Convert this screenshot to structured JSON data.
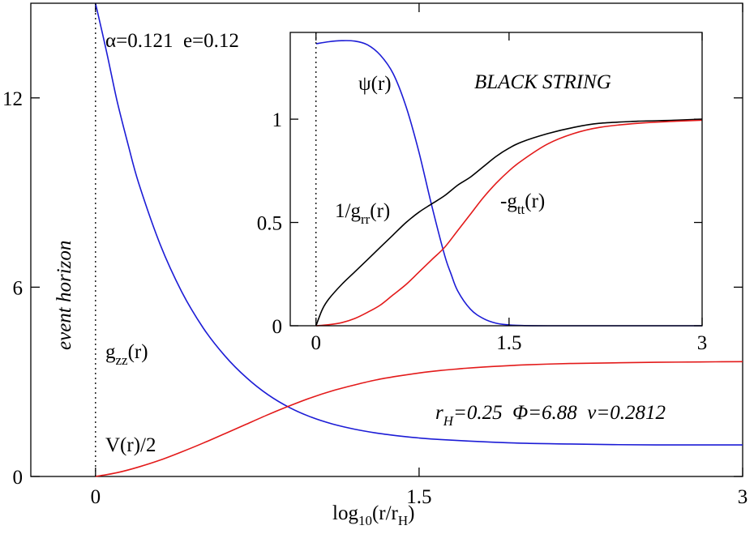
{
  "chart_data": [
    {
      "type": "line",
      "panel": "main",
      "xlabel": {
        "base": "log",
        "sub1": "10",
        "mid": "(r/r",
        "sub2": "H",
        "end": ")"
      },
      "xlim": [
        -0.3,
        3
      ],
      "ylim": [
        0,
        15
      ],
      "x_ticks": [
        0,
        1.5,
        3
      ],
      "x_tick_labels": [
        "0",
        "1.5",
        "3"
      ],
      "y_ticks": [
        0,
        6,
        12
      ],
      "y_tick_labels": [
        "0",
        "6",
        "12"
      ],
      "vertical_line": {
        "x": 0,
        "style": "dotted",
        "label": "event horizon"
      },
      "annotations": {
        "params_top": "α=0.121  e=0.12",
        "params_bottom": {
          "r_main": "r",
          "r_sub": "H",
          "rest": "=0.25  Φ=6.88  ν=0.2812"
        }
      },
      "series": [
        {
          "name": "g_zz(r)",
          "label": {
            "main": "g",
            "sub": "zz",
            "end": "(r)"
          },
          "color": "#1c1cd6",
          "x": [
            0,
            0.05,
            0.1,
            0.15,
            0.2,
            0.3,
            0.4,
            0.5,
            0.6,
            0.7,
            0.8,
            0.9,
            1.0,
            1.1,
            1.2,
            1.3,
            1.4,
            1.5,
            1.6,
            1.8,
            2.0,
            2.2,
            2.4,
            2.6,
            2.8,
            3.0
          ],
          "y": [
            15.0,
            13.5,
            11.9,
            10.55,
            9.3,
            7.35,
            5.85,
            4.7,
            3.82,
            3.13,
            2.59,
            2.18,
            1.88,
            1.66,
            1.5,
            1.38,
            1.29,
            1.22,
            1.17,
            1.1,
            1.05,
            1.03,
            1.01,
            1.0,
            1.0,
            1.0
          ]
        },
        {
          "name": "V(r)/2",
          "label": {
            "main": "V(r)/2"
          },
          "color": "#e31a1a",
          "x": [
            0,
            0.1,
            0.2,
            0.3,
            0.4,
            0.5,
            0.6,
            0.7,
            0.8,
            0.9,
            1.0,
            1.1,
            1.2,
            1.3,
            1.4,
            1.5,
            1.6,
            1.7,
            1.8,
            2.0,
            2.2,
            2.4,
            2.6,
            2.8,
            3.0
          ],
          "y": [
            0.0,
            0.12,
            0.3,
            0.52,
            0.78,
            1.06,
            1.36,
            1.66,
            1.96,
            2.24,
            2.5,
            2.72,
            2.9,
            3.06,
            3.18,
            3.28,
            3.36,
            3.42,
            3.47,
            3.54,
            3.58,
            3.6,
            3.62,
            3.63,
            3.64
          ]
        }
      ]
    },
    {
      "type": "line",
      "panel": "inset",
      "title": "BLACK STRING",
      "xlim": [
        -0.2,
        3
      ],
      "ylim": [
        0,
        1.42
      ],
      "x_ticks": [
        0,
        1.5,
        3
      ],
      "x_tick_labels": [
        "0",
        "1.5",
        "3"
      ],
      "y_ticks": [
        0,
        0.5,
        1
      ],
      "y_tick_labels": [
        "0",
        "0.5",
        "1"
      ],
      "vertical_line": {
        "x": 0,
        "style": "dotted"
      },
      "series": [
        {
          "name": "ψ(r)",
          "label": {
            "main": "ψ(r)"
          },
          "color": "#1c1cd6",
          "x": [
            0,
            0.1,
            0.2,
            0.3,
            0.4,
            0.5,
            0.6,
            0.7,
            0.8,
            0.9,
            1.0,
            1.05,
            1.1,
            1.2,
            1.3,
            1.4,
            1.5,
            1.6,
            1.8,
            2.0,
            2.5,
            3.0
          ],
          "y": [
            1.365,
            1.375,
            1.38,
            1.378,
            1.36,
            1.31,
            1.22,
            1.06,
            0.84,
            0.58,
            0.34,
            0.25,
            0.17,
            0.08,
            0.035,
            0.012,
            0.004,
            0.001,
            0.0,
            0.0,
            0.0,
            0.0
          ]
        },
        {
          "name": "1/g_rr(r)",
          "label": {
            "main": "1/g",
            "sub": "rr",
            "end": "(r)"
          },
          "color": "#000000",
          "x": [
            0,
            0.05,
            0.1,
            0.2,
            0.3,
            0.4,
            0.5,
            0.6,
            0.7,
            0.8,
            0.9,
            1.0,
            1.1,
            1.2,
            1.3,
            1.4,
            1.5,
            1.6,
            1.8,
            2.0,
            2.2,
            2.5,
            2.8,
            3.0
          ],
          "y": [
            0.0,
            0.08,
            0.13,
            0.2,
            0.26,
            0.32,
            0.38,
            0.44,
            0.5,
            0.55,
            0.59,
            0.63,
            0.68,
            0.72,
            0.77,
            0.82,
            0.86,
            0.89,
            0.93,
            0.96,
            0.98,
            0.99,
            0.995,
            1.0
          ]
        },
        {
          "name": "-g_tt(r)",
          "label": {
            "main": "-g",
            "sub": "tt",
            "end": "(r)"
          },
          "color": "#e31a1a",
          "x": [
            0,
            0.1,
            0.2,
            0.3,
            0.4,
            0.5,
            0.6,
            0.7,
            0.8,
            0.9,
            1.0,
            1.1,
            1.2,
            1.3,
            1.4,
            1.5,
            1.6,
            1.8,
            2.0,
            2.2,
            2.5,
            2.8,
            3.0
          ],
          "y": [
            0.0,
            0.005,
            0.015,
            0.035,
            0.065,
            0.1,
            0.15,
            0.2,
            0.26,
            0.32,
            0.38,
            0.46,
            0.54,
            0.62,
            0.69,
            0.75,
            0.8,
            0.88,
            0.93,
            0.96,
            0.98,
            0.99,
            0.995
          ]
        }
      ]
    }
  ]
}
